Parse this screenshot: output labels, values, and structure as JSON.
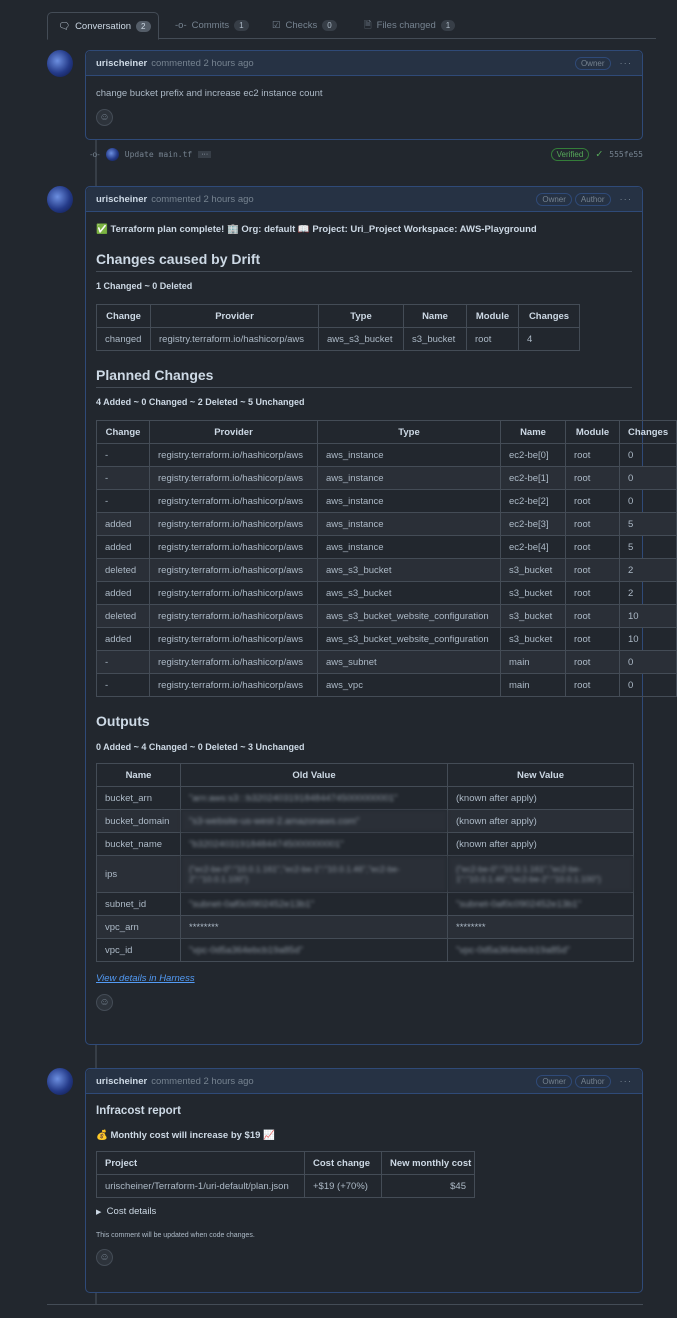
{
  "tabs": [
    {
      "label": "Conversation",
      "count": "2",
      "icon": "comment-icon"
    },
    {
      "label": "Commits",
      "count": "1",
      "icon": "commit-icon"
    },
    {
      "label": "Checks",
      "count": "0",
      "icon": "checklist-icon"
    },
    {
      "label": "Files changed",
      "count": "1",
      "icon": "file-diff-icon"
    }
  ],
  "comment1": {
    "author": "urischeiner",
    "meta": "commented 2 hours ago",
    "badges": [
      "Owner"
    ],
    "text": "change bucket prefix and increase ec2 instance count"
  },
  "commit": {
    "message": "Update main.tf",
    "verified": "Verified",
    "sha": "555fe55",
    "colors": {
      "verified": "#57ab5a"
    }
  },
  "comment2": {
    "author": "urischeiner",
    "meta": "commented 2 hours ago",
    "badges": [
      "Owner",
      "Author"
    ],
    "summary": "✅ Terraform plan complete! 🏢 Org: default 📖 Project: Uri_Project Workspace: AWS-Playground",
    "drift": {
      "title": "Changes caused by Drift",
      "stats": "1 Changed ~ 0 Deleted",
      "headers": [
        "Change",
        "Provider",
        "Type",
        "Name",
        "Module",
        "Changes"
      ],
      "rows": [
        [
          "changed",
          "registry.terraform.io/hashicorp/aws",
          "aws_s3_bucket",
          "s3_bucket",
          "root",
          "4"
        ]
      ]
    },
    "planned": {
      "title": "Planned Changes",
      "stats": "4 Added ~ 0 Changed ~ 2 Deleted ~ 5 Unchanged",
      "headers": [
        "Change",
        "Provider",
        "Type",
        "Name",
        "Module",
        "Changes"
      ],
      "rows": [
        [
          "-",
          "registry.terraform.io/hashicorp/aws",
          "aws_instance",
          "ec2-be[0]",
          "root",
          "0"
        ],
        [
          "-",
          "registry.terraform.io/hashicorp/aws",
          "aws_instance",
          "ec2-be[1]",
          "root",
          "0"
        ],
        [
          "-",
          "registry.terraform.io/hashicorp/aws",
          "aws_instance",
          "ec2-be[2]",
          "root",
          "0"
        ],
        [
          "added",
          "registry.terraform.io/hashicorp/aws",
          "aws_instance",
          "ec2-be[3]",
          "root",
          "5"
        ],
        [
          "added",
          "registry.terraform.io/hashicorp/aws",
          "aws_instance",
          "ec2-be[4]",
          "root",
          "5"
        ],
        [
          "deleted",
          "registry.terraform.io/hashicorp/aws",
          "aws_s3_bucket",
          "s3_bucket",
          "root",
          "2"
        ],
        [
          "added",
          "registry.terraform.io/hashicorp/aws",
          "aws_s3_bucket",
          "s3_bucket",
          "root",
          "2"
        ],
        [
          "deleted",
          "registry.terraform.io/hashicorp/aws",
          "aws_s3_bucket_website_configuration",
          "s3_bucket",
          "root",
          "10"
        ],
        [
          "added",
          "registry.terraform.io/hashicorp/aws",
          "aws_s3_bucket_website_configuration",
          "s3_bucket",
          "root",
          "10"
        ],
        [
          "-",
          "registry.terraform.io/hashicorp/aws",
          "aws_subnet",
          "main",
          "root",
          "0"
        ],
        [
          "-",
          "registry.terraform.io/hashicorp/aws",
          "aws_vpc",
          "main",
          "root",
          "0"
        ]
      ]
    },
    "outputs": {
      "title": "Outputs",
      "stats": "0 Added ~ 4 Changed ~ 0 Deleted ~ 3 Unchanged",
      "headers": [
        "Name",
        "Old Value",
        "New Value"
      ],
      "rows": [
        [
          "bucket_arn",
          "\"arn:aws:s3:::b320240319184844745000000001\"",
          "(known after apply)"
        ],
        [
          "bucket_domain",
          "\"s3-website-us-west-2.amazonaws.com\"",
          "(known after apply)"
        ],
        [
          "bucket_name",
          "\"b320240319184844745000000001\"",
          "(known after apply)"
        ],
        [
          "ips",
          "{\"ec2-be-0\":\"10.0.1.161\",\"ec2-be-1\":\"10.0.1.46\",\"ec2-be-2\":\"10.0.1.100\"}",
          "{\"ec2-be-0\":\"10.0.1.161\",\"ec2-be-1\":\"10.0.1.46\",\"ec2-be-2\":\"10.0.1.100\"}"
        ],
        [
          "subnet_id",
          "\"subnet-0af0c0902452e13b1\"",
          "\"subnet-0af0c0902452e13b1\""
        ],
        [
          "vpc_arn",
          "********",
          "********"
        ],
        [
          "vpc_id",
          "\"vpc-0d5a364ebcb19a85d\"",
          "\"vpc-0d5a364ebcb19a85d\""
        ]
      ]
    },
    "link": "View details in Harness"
  },
  "comment3": {
    "author": "urischeiner",
    "meta": "commented 2 hours ago",
    "badges": [
      "Owner",
      "Author"
    ],
    "title": "Infracost report",
    "headline": "💰 Monthly cost will increase by $19 📈",
    "headers": [
      "Project",
      "Cost change",
      "New monthly cost"
    ],
    "rows": [
      [
        "urischeiner/Terraform-1/uri-default/plan.json",
        "+$19 (+70%)",
        "$45"
      ]
    ],
    "details": "Cost details",
    "note": "This comment will be updated when code changes."
  }
}
